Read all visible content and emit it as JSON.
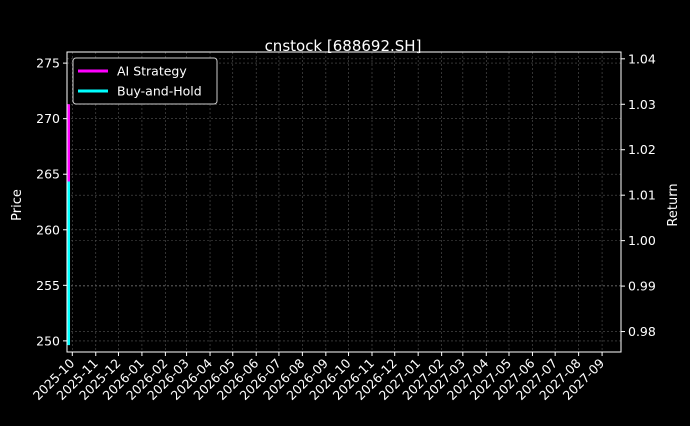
{
  "chart_data": {
    "type": "line",
    "title": "cnstock [688692.SH]",
    "ylabel": "Price",
    "y2label": "Return",
    "ylim": [
      249,
      276
    ],
    "y2lim": [
      0.9755,
      1.0415
    ],
    "xlim": [
      "2025-09-24",
      "2027-09-26"
    ],
    "yticks": [
      250,
      255,
      260,
      265,
      270,
      275
    ],
    "y2ticks": [
      "0.98",
      "0.99",
      "1.00",
      "1.01",
      "1.02",
      "1.03",
      "1.04"
    ],
    "xticks": [
      "2025-10",
      "2025-11",
      "2025-12",
      "2026-01",
      "2026-02",
      "2026-03",
      "2026-04",
      "2026-05",
      "2026-06",
      "2026-07",
      "2026-08",
      "2026-09",
      "2026-10",
      "2026-11",
      "2026-12",
      "2027-01",
      "2027-02",
      "2027-03",
      "2027-04",
      "2027-05",
      "2027-06",
      "2027-07",
      "2027-08",
      "2027-09"
    ],
    "grid": true,
    "legend_position": "top-left",
    "series": [
      {
        "name": "AI Strategy",
        "axis": "right",
        "color": "#ff00ff",
        "x": [
          "2025-09-26",
          "2025-09-26"
        ],
        "y": [
          1.013,
          1.03
        ]
      },
      {
        "name": "Buy-and-Hold",
        "axis": "right",
        "color": "#00ffff",
        "x": [
          "2025-09-26",
          "2025-09-26"
        ],
        "y": [
          0.977,
          1.013
        ]
      }
    ]
  }
}
